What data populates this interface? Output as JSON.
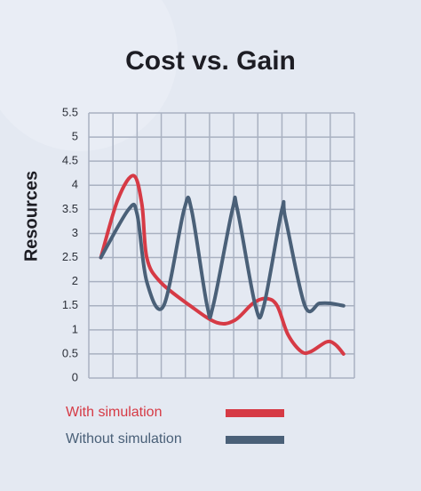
{
  "chart_data": {
    "type": "line",
    "title": "Cost vs. Gain",
    "y_label": "Resources",
    "xlim": [
      0,
      11
    ],
    "xticks": [
      0,
      1,
      2,
      3,
      4,
      5,
      6,
      7,
      8,
      9,
      10,
      11
    ],
    "ylim": [
      0,
      5.5
    ],
    "yticks": [
      0,
      0.5,
      1,
      1.5,
      2,
      2.5,
      3,
      3.5,
      4,
      4.5,
      5,
      5.5
    ],
    "grid": true,
    "smooth": true,
    "series": [
      {
        "name": "With simulation",
        "color": "#d63a45",
        "x": [
          0.5,
          1.2,
          1.85,
          2.2,
          2.4,
          2.95,
          4.2,
          5.3,
          6.05,
          6.8,
          7.35,
          7.8,
          8.25,
          8.8,
          9.2,
          9.85,
          10.2,
          10.55
        ],
        "values": [
          2.5,
          3.7,
          4.2,
          3.6,
          2.5,
          2.0,
          1.5,
          1.15,
          1.2,
          1.55,
          1.65,
          1.5,
          0.9,
          0.55,
          0.55,
          0.75,
          0.7,
          0.5
        ]
      },
      {
        "name": "Without simulation",
        "color": "#4a6078",
        "x": [
          0.5,
          1.65,
          2.0,
          2.4,
          3.1,
          3.95,
          4.25,
          4.9,
          5.15,
          5.95,
          6.15,
          6.9,
          7.25,
          8.0,
          8.15,
          8.95,
          9.55,
          10.0,
          10.55
        ],
        "values": [
          2.5,
          3.5,
          3.4,
          2.0,
          1.5,
          3.5,
          3.5,
          1.5,
          1.5,
          3.5,
          3.5,
          1.5,
          1.5,
          3.5,
          3.3,
          1.5,
          1.55,
          1.55,
          1.5
        ]
      }
    ]
  }
}
